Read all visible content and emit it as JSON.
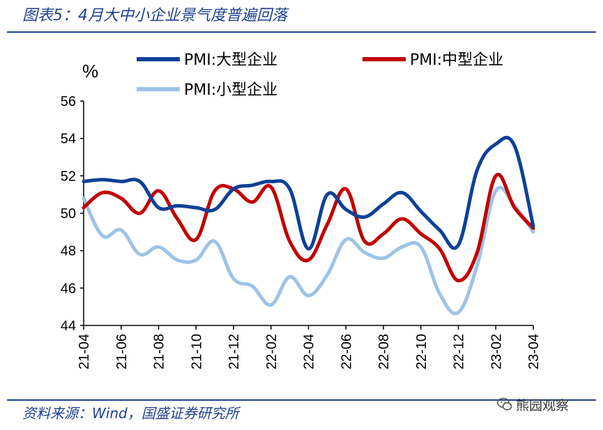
{
  "header": {
    "title": "图表5：4月大中小企业景气度普遍回落"
  },
  "footer": {
    "source": "资料来源：Wind，国盛证券研究所",
    "watermark": "熊园观察"
  },
  "icons": {
    "watermark": "wechat-icon"
  },
  "colors": {
    "large": "#0d4196",
    "medium": "#c00000",
    "small": "#9dc3e6",
    "rule": "#1f3f8f"
  },
  "chart_data": {
    "type": "line",
    "ylabel": "%",
    "ylim": [
      44,
      56
    ],
    "yticks": [
      "44",
      "46",
      "48",
      "50",
      "52",
      "54",
      "56"
    ],
    "grid": false,
    "legend_position": "top",
    "x": [
      "21-04",
      "21-05",
      "21-06",
      "21-07",
      "21-08",
      "21-09",
      "21-10",
      "21-11",
      "21-12",
      "22-01",
      "22-02",
      "22-03",
      "22-04",
      "22-05",
      "22-06",
      "22-07",
      "22-08",
      "22-09",
      "22-10",
      "22-11",
      "22-12",
      "23-01",
      "23-02",
      "23-03",
      "23-04"
    ],
    "xtick_labels": [
      "21-04",
      "21-06",
      "21-08",
      "21-10",
      "21-12",
      "22-02",
      "22-04",
      "22-06",
      "22-08",
      "22-10",
      "22-12",
      "23-02",
      "23-04"
    ],
    "series": [
      {
        "name": "PMI:大型企业",
        "color": "#0d4196",
        "values": [
          51.7,
          51.8,
          51.7,
          51.7,
          50.3,
          50.4,
          50.3,
          50.2,
          51.3,
          51.5,
          51.7,
          51.3,
          48.1,
          51.0,
          50.2,
          49.8,
          50.5,
          51.1,
          50.1,
          49.1,
          48.3,
          52.3,
          53.7,
          53.6,
          49.3
        ]
      },
      {
        "name": "PMI:中型企业",
        "color": "#c00000",
        "values": [
          50.3,
          51.1,
          50.8,
          50.0,
          51.2,
          49.7,
          48.6,
          51.2,
          51.3,
          50.6,
          51.4,
          48.5,
          47.5,
          49.4,
          51.3,
          48.5,
          48.9,
          49.7,
          48.9,
          48.1,
          46.4,
          47.9,
          52.0,
          50.3,
          49.2
        ]
      },
      {
        "name": "PMI:小型企业",
        "color": "#9dc3e6",
        "values": [
          50.8,
          48.8,
          49.1,
          47.8,
          48.2,
          47.5,
          47.5,
          48.5,
          46.5,
          46.1,
          45.1,
          46.6,
          45.6,
          46.7,
          48.6,
          47.9,
          47.6,
          48.2,
          48.2,
          45.7,
          44.7,
          47.2,
          51.2,
          50.4,
          49.0
        ]
      }
    ]
  }
}
